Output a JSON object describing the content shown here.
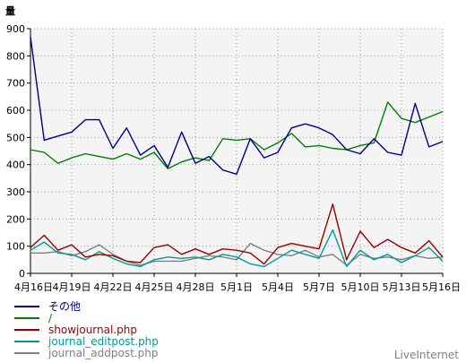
{
  "brand": "LiveInternet",
  "chart_data": {
    "type": "line",
    "ylabel": "量",
    "ylim": [
      0,
      900
    ],
    "yticks": [
      0,
      100,
      200,
      300,
      400,
      500,
      600,
      700,
      800,
      900
    ],
    "xtick_labels": [
      "4月16日",
      "4月19日",
      "4月22日",
      "4月25日",
      "4月28日",
      "5月1日",
      "5月4日",
      "5月7日",
      "5月10日",
      "5月13日",
      "5月16日"
    ],
    "xtick_every": 3,
    "grid": true,
    "legend_position": "bottom-left",
    "series": [
      {
        "name": "その他",
        "color": "#000080",
        "values": [
          870,
          490,
          505,
          520,
          565,
          565,
          460,
          535,
          435,
          470,
          390,
          520,
          405,
          430,
          380,
          365,
          495,
          425,
          445,
          535,
          550,
          535,
          510,
          455,
          440,
          495,
          445,
          435,
          625,
          465,
          485
        ]
      },
      {
        "name": "/",
        "color": "#008000",
        "values": [
          455,
          445,
          405,
          425,
          440,
          430,
          420,
          440,
          420,
          445,
          385,
          410,
          425,
          415,
          495,
          490,
          495,
          455,
          480,
          515,
          465,
          470,
          460,
          455,
          470,
          480,
          630,
          570,
          555,
          575,
          595
        ]
      },
      {
        "name": "showjournal.php",
        "color": "#990000",
        "values": [
          95,
          140,
          85,
          105,
          60,
          70,
          65,
          45,
          40,
          95,
          105,
          70,
          90,
          70,
          90,
          85,
          75,
          35,
          95,
          110,
          100,
          90,
          255,
          50,
          155,
          95,
          125,
          95,
          75,
          120,
          60
        ]
      },
      {
        "name": "journal_editpost.php",
        "color": "#009999",
        "values": [
          85,
          115,
          75,
          70,
          50,
          80,
          55,
          35,
          25,
          50,
          60,
          55,
          60,
          50,
          70,
          60,
          35,
          25,
          55,
          85,
          70,
          55,
          160,
          25,
          85,
          50,
          70,
          40,
          65,
          95,
          45
        ]
      },
      {
        "name": "journal_addpost.php",
        "color": "#808080",
        "values": [
          75,
          75,
          80,
          65,
          80,
          105,
          70,
          45,
          30,
          45,
          45,
          45,
          55,
          65,
          60,
          50,
          110,
          85,
          70,
          65,
          85,
          60,
          70,
          30,
          70,
          55,
          60,
          50,
          65,
          55,
          60
        ]
      }
    ]
  }
}
